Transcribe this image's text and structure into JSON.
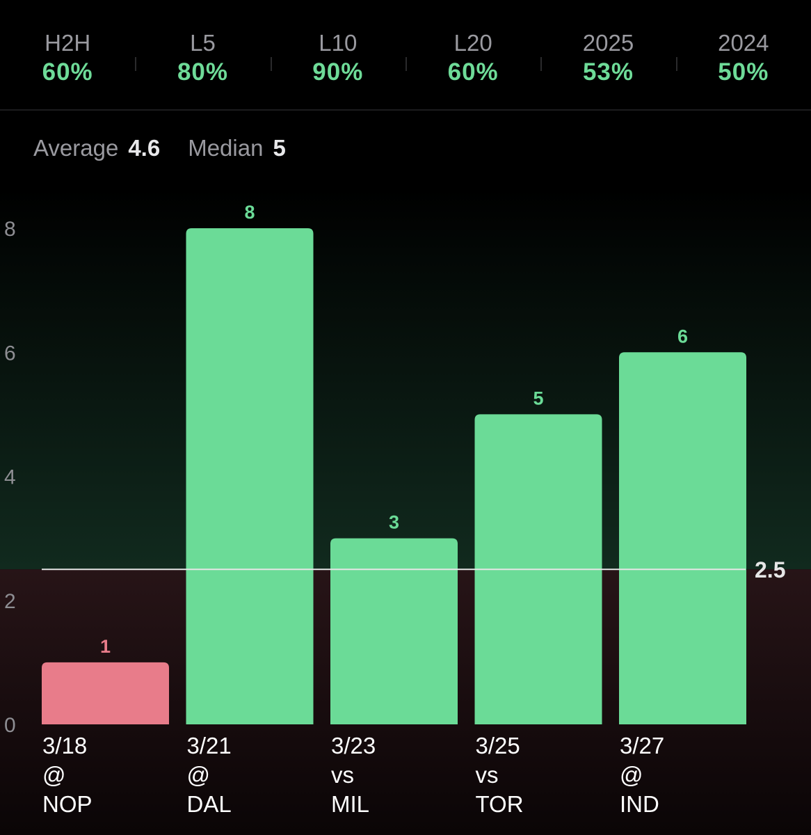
{
  "tabs": [
    {
      "label": "H2H",
      "value": "60%"
    },
    {
      "label": "L5",
      "value": "80%"
    },
    {
      "label": "L10",
      "value": "90%"
    },
    {
      "label": "L20",
      "value": "60%"
    },
    {
      "label": "2025",
      "value": "53%"
    },
    {
      "label": "2024",
      "value": "50%"
    }
  ],
  "stats": {
    "average_label": "Average",
    "average_value": "4.6",
    "median_label": "Median",
    "median_value": "5"
  },
  "colors": {
    "hit": "#6bdb97",
    "miss": "#e87c8a",
    "line": "#e6e6e6"
  },
  "chart_data": {
    "type": "bar",
    "categories": [
      {
        "date": "3/18",
        "loc": "@",
        "opp": "NOP"
      },
      {
        "date": "3/21",
        "loc": "@",
        "opp": "DAL"
      },
      {
        "date": "3/23",
        "loc": "vs",
        "opp": "MIL"
      },
      {
        "date": "3/25",
        "loc": "vs",
        "opp": "TOR"
      },
      {
        "date": "3/27",
        "loc": "@",
        "opp": "IND"
      }
    ],
    "values": [
      1,
      8,
      3,
      5,
      6
    ],
    "line": 2.5,
    "line_label": "2.5",
    "yticks": [
      0,
      2,
      4,
      6,
      8
    ],
    "ylim": [
      0,
      8
    ],
    "xlabel": "",
    "ylabel": ""
  }
}
